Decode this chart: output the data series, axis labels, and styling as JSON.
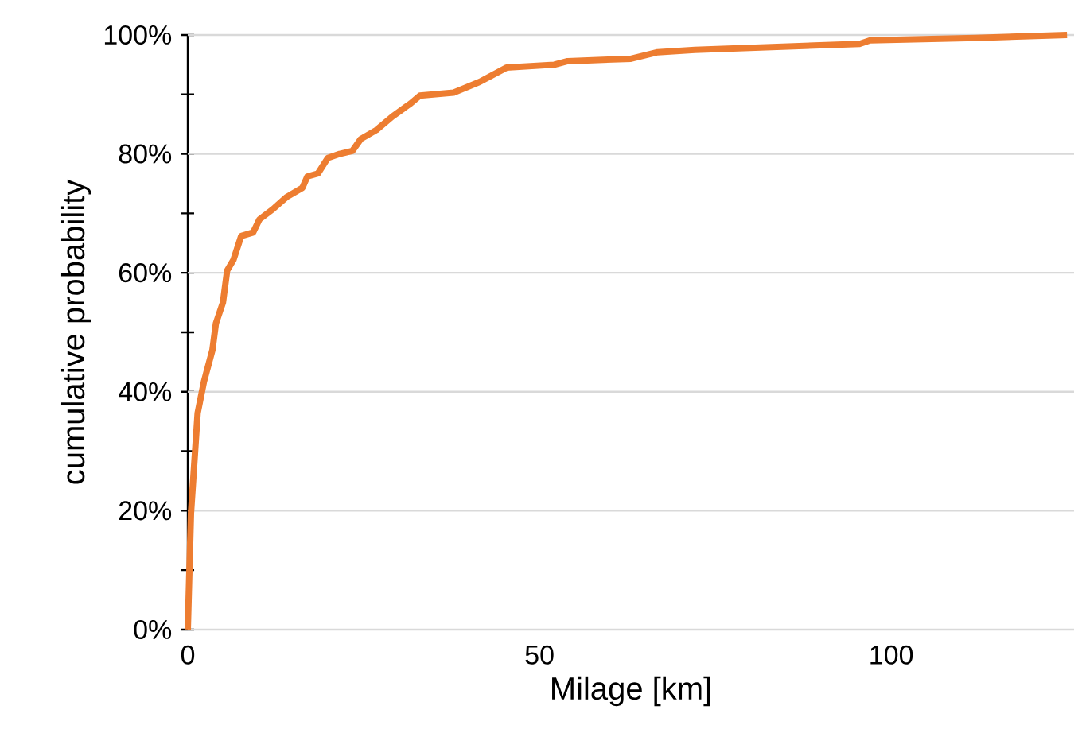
{
  "chart_data": {
    "type": "line",
    "xlabel": "Milage [km]",
    "ylabel": "cumulative probability",
    "xlim": [
      0,
      126
    ],
    "xticks": [
      0,
      50,
      100
    ],
    "ylim": [
      0,
      100
    ],
    "yticks": [
      {
        "value": 0,
        "label": "0%"
      },
      {
        "value": 10,
        "label": null
      },
      {
        "value": 20,
        "label": "20%"
      },
      {
        "value": 30,
        "label": null
      },
      {
        "value": 40,
        "label": "40%"
      },
      {
        "value": 50,
        "label": null
      },
      {
        "value": 60,
        "label": "60%"
      },
      {
        "value": 70,
        "label": null
      },
      {
        "value": 80,
        "label": "80%"
      },
      {
        "value": 90,
        "label": null
      },
      {
        "value": 100,
        "label": "100%"
      }
    ],
    "grid": "y",
    "marker": "none",
    "line_style": "solid",
    "series": [
      {
        "color": "#ed7d31",
        "x": [
          0,
          0.45,
          1.4,
          2.3,
          3.5,
          4.0,
          5.0,
          5.6,
          6.5,
          7.6,
          9.3,
          10.2,
          12.1,
          14,
          16.3,
          17,
          18.5,
          19.9,
          21.6,
          23.4,
          24.6,
          26.8,
          29.1,
          31.7,
          33,
          37.8,
          41.5,
          45.3,
          52.1,
          54,
          63,
          66.8,
          72.1,
          95.5,
          97,
          112,
          125
        ],
        "values": [
          0,
          19.5,
          36.4,
          41.7,
          47,
          51.5,
          55,
          60.4,
          62.2,
          66.2,
          66.8,
          69,
          70.7,
          72.7,
          74.3,
          76.2,
          76.7,
          79.3,
          80,
          80.5,
          82.5,
          84,
          86.3,
          88.5,
          89.8,
          90.3,
          92.1,
          94.5,
          95,
          95.6,
          96,
          97.1,
          97.5,
          98.5,
          99.1,
          99.5,
          100
        ]
      }
    ]
  }
}
